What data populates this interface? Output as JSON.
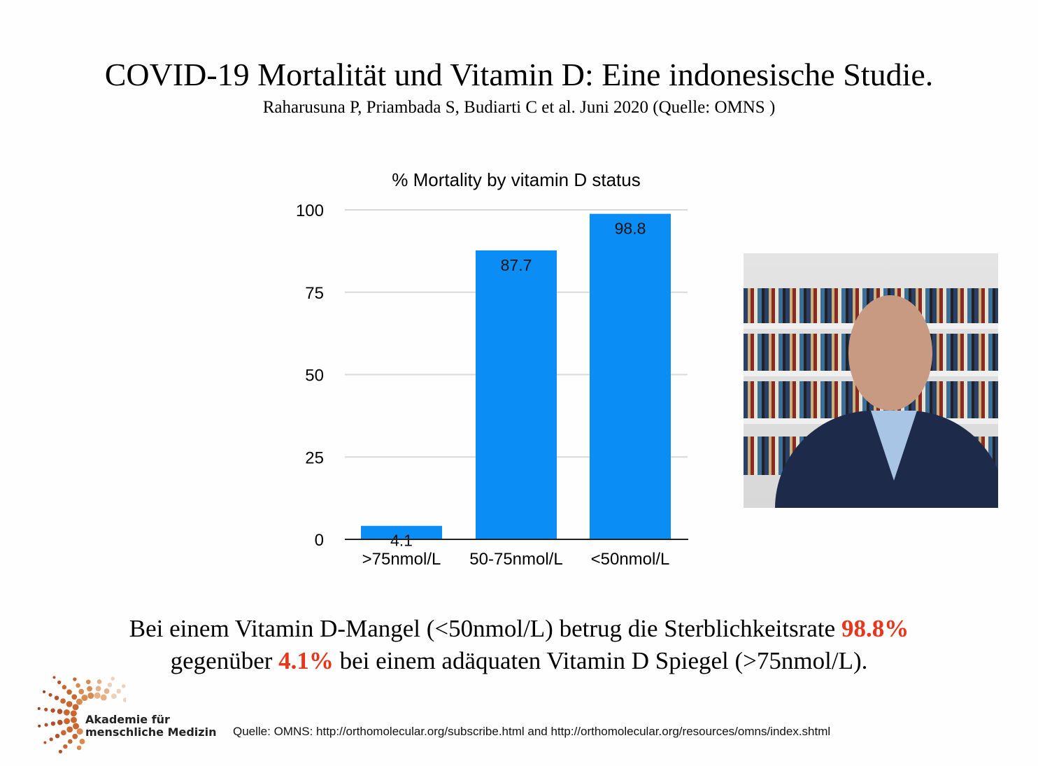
{
  "slide": {
    "title": "COVID-19 Mortalität und Vitamin D: Eine indonesische Studie.",
    "subtitle": "Raharusuna P, Priambada S, Budiarti C et al. Juni 2020 (Quelle: OMNS )",
    "summary": {
      "part1": "Bei einem Vitamin D-Mangel (<50nmol/L) betrug die Sterblichkeitsrate ",
      "highlight1": "98.8%",
      "part2": "gegenüber ",
      "highlight2": "4.1%",
      "part3": " bei einem adäquaten Vitamin D Spiegel (>75nmol/L).",
      "highlight_color": "#e8361b"
    },
    "logo": {
      "line1": "Akademie für",
      "line2": "menschliche Medizin"
    },
    "source": "Quelle: OMNS: http://orthomolecular.org/subscribe.html and http://orthomolecular.org/resources/omns/index.shtml",
    "video_inset": "speaker-webcam"
  },
  "chart_data": {
    "type": "bar",
    "title": "% Mortality by vitamin D status",
    "categories": [
      ">75nmol/L",
      "50-75nmol/L",
      "<50nmol/L"
    ],
    "values": [
      4.1,
      87.7,
      98.8
    ],
    "data_labels": [
      "4.1",
      "87.7",
      "98.8"
    ],
    "yticks": [
      "0",
      "25",
      "50",
      "75",
      "100"
    ],
    "ylim": [
      0,
      100
    ],
    "grid": true,
    "bar_color": "#0a8ef5"
  }
}
